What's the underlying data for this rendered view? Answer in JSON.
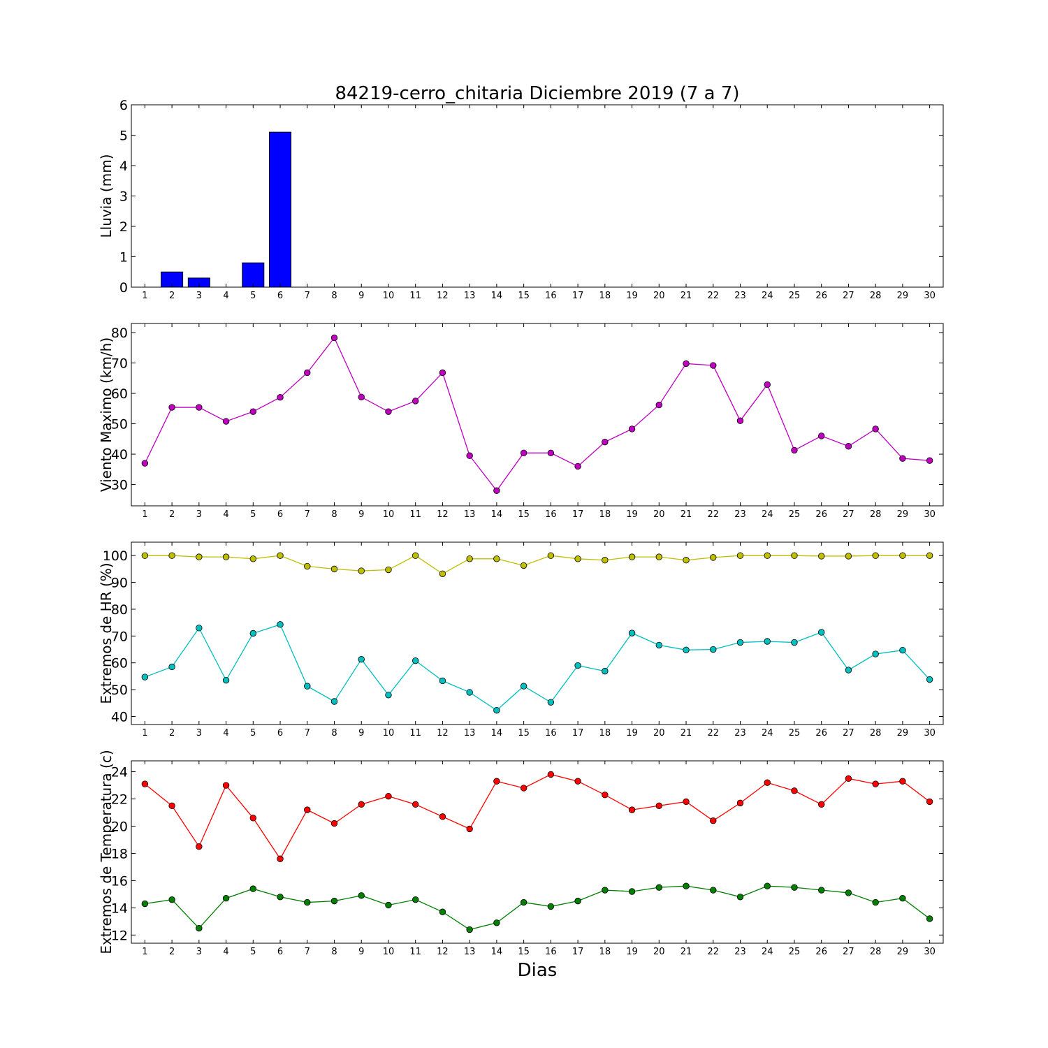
{
  "figure": {
    "title": "84219-cerro_chitaria Diciembre 2019  (7 a 7)",
    "xlabel": "Dias"
  },
  "chart_data": [
    {
      "type": "bar",
      "ylabel": "Lluvia (mm)",
      "x": [
        1,
        2,
        3,
        4,
        5,
        6,
        7,
        8,
        9,
        10,
        11,
        12,
        13,
        14,
        15,
        16,
        17,
        18,
        19,
        20,
        21,
        22,
        23,
        24,
        25,
        26,
        27,
        28,
        29,
        30
      ],
      "xlim": [
        0.5,
        30.5
      ],
      "ylim": [
        0,
        6
      ],
      "yticks": [
        0,
        1,
        2,
        3,
        4,
        5,
        6
      ],
      "series": [
        {
          "color": "#0000ff",
          "values": [
            0,
            0.5,
            0.3,
            0,
            0.8,
            5.1,
            0,
            0,
            0,
            0,
            0,
            0,
            0,
            0,
            0,
            0,
            0,
            0,
            0,
            0,
            0,
            0,
            0,
            0,
            0,
            0,
            0,
            0,
            0,
            0
          ]
        }
      ]
    },
    {
      "type": "line",
      "ylabel": "Viento Maximo (km/h)",
      "x": [
        1,
        2,
        3,
        4,
        5,
        6,
        7,
        8,
        9,
        10,
        11,
        12,
        13,
        14,
        15,
        16,
        17,
        18,
        19,
        20,
        21,
        22,
        23,
        24,
        25,
        26,
        27,
        28,
        29,
        30
      ],
      "xlim": [
        0.5,
        30.5
      ],
      "ylim": [
        23,
        83
      ],
      "yticks": [
        30,
        40,
        50,
        60,
        70,
        80
      ],
      "series": [
        {
          "color": "#bf00bf",
          "values": [
            37,
            55.4,
            55.4,
            50.8,
            54,
            58.7,
            66.8,
            78.3,
            58.8,
            54,
            57.5,
            66.8,
            39.5,
            28,
            40.4,
            40.4,
            36,
            44,
            48.3,
            56.2,
            69.8,
            69.2,
            51,
            62.9,
            41.3,
            46,
            42.6,
            48.3,
            38.6,
            37.9
          ]
        }
      ]
    },
    {
      "type": "line",
      "ylabel": "Extremos de HR (%)",
      "x": [
        1,
        2,
        3,
        4,
        5,
        6,
        7,
        8,
        9,
        10,
        11,
        12,
        13,
        14,
        15,
        16,
        17,
        18,
        19,
        20,
        21,
        22,
        23,
        24,
        25,
        26,
        27,
        28,
        29,
        30
      ],
      "xlim": [
        0.5,
        30.5
      ],
      "ylim": [
        37,
        105
      ],
      "yticks": [
        40,
        50,
        60,
        70,
        80,
        90,
        100
      ],
      "series": [
        {
          "color": "#bfbf00",
          "values": [
            100,
            100,
            99.5,
            99.5,
            98.8,
            100,
            96,
            95,
            94.3,
            94.7,
            100,
            93.2,
            98.8,
            98.8,
            96.3,
            100,
            98.8,
            98.3,
            99.5,
            99.5,
            98.3,
            99.3,
            100,
            100,
            100,
            99.8,
            99.8,
            100,
            100,
            100
          ]
        },
        {
          "color": "#00bfbf",
          "values": [
            54.7,
            58.5,
            73,
            53.5,
            71,
            74.3,
            51.3,
            45.6,
            61.3,
            48,
            60.8,
            53.3,
            49,
            42.3,
            51.3,
            45.3,
            59,
            56.9,
            71.1,
            66.6,
            64.8,
            65,
            67.6,
            68,
            67.6,
            71.4,
            57.3,
            63.3,
            64.7,
            53.8
          ]
        }
      ]
    },
    {
      "type": "line",
      "ylabel": "Extremos de Temperatura (c)",
      "x": [
        1,
        2,
        3,
        4,
        5,
        6,
        7,
        8,
        9,
        10,
        11,
        12,
        13,
        14,
        15,
        16,
        17,
        18,
        19,
        20,
        21,
        22,
        23,
        24,
        25,
        26,
        27,
        28,
        29,
        30
      ],
      "xlim": [
        0.5,
        30.5
      ],
      "ylim": [
        11.4,
        24.8
      ],
      "yticks": [
        12,
        14,
        16,
        18,
        20,
        22,
        24
      ],
      "series": [
        {
          "color": "#ff0000",
          "values": [
            23.1,
            21.5,
            18.5,
            23,
            20.6,
            17.6,
            21.2,
            20.2,
            21.6,
            22.2,
            21.6,
            20.7,
            19.8,
            23.3,
            22.8,
            23.8,
            23.3,
            22.3,
            21.2,
            21.5,
            21.8,
            20.4,
            21.7,
            23.2,
            22.6,
            21.6,
            23.5,
            23.1,
            23.3,
            21.8
          ]
        },
        {
          "color": "#007f00",
          "values": [
            14.3,
            14.6,
            12.5,
            14.7,
            15.4,
            14.8,
            14.4,
            14.5,
            14.9,
            14.2,
            14.6,
            13.7,
            12.4,
            12.9,
            14.4,
            14.1,
            14.5,
            15.3,
            15.2,
            15.5,
            15.6,
            15.3,
            14.8,
            15.6,
            15.5,
            15.3,
            15.1,
            14.4,
            14.7,
            13.2
          ]
        }
      ]
    }
  ]
}
